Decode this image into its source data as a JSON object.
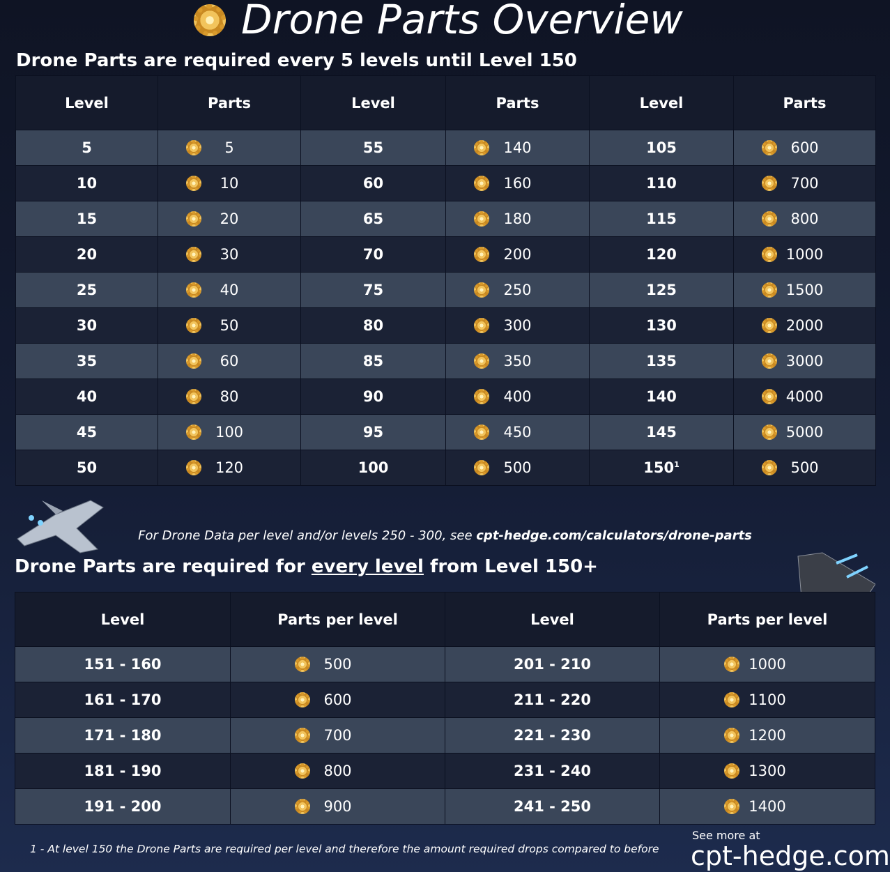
{
  "title": "Drone Parts Overview",
  "section1": {
    "heading": "Drone Parts are required every 5 levels until Level 150"
  },
  "table1": {
    "headers": [
      "Level",
      "Parts",
      "Level",
      "Parts",
      "Level",
      "Parts"
    ],
    "rows": [
      [
        5,
        5,
        55,
        140,
        105,
        600
      ],
      [
        10,
        10,
        60,
        160,
        110,
        700
      ],
      [
        15,
        20,
        65,
        180,
        115,
        800
      ],
      [
        20,
        30,
        70,
        200,
        120,
        1000
      ],
      [
        25,
        40,
        75,
        250,
        125,
        1500
      ],
      [
        30,
        50,
        80,
        300,
        130,
        2000
      ],
      [
        35,
        60,
        85,
        350,
        135,
        3000
      ],
      [
        40,
        80,
        90,
        400,
        140,
        4000
      ],
      [
        45,
        100,
        95,
        450,
        145,
        5000
      ],
      [
        50,
        120,
        100,
        500,
        150,
        500
      ]
    ],
    "footnote_marker": "1"
  },
  "note": {
    "text": "For Drone Data per level and/or levels 250 - 300, see",
    "link": "cpt-hedge.com/calculators/drone-parts"
  },
  "section2": {
    "heading_before": "Drone Parts are required for",
    "heading_underlined": "every level",
    "heading_after": "from Level 150+"
  },
  "table2": {
    "headers": [
      "Level",
      "Parts per level",
      "Level",
      "Parts per level"
    ],
    "rows": [
      [
        "151 - 160",
        500,
        "201 - 210",
        1000
      ],
      [
        "161 - 170",
        600,
        "211 - 220",
        1100
      ],
      [
        "171 - 180",
        700,
        "221 - 230",
        1200
      ],
      [
        "181 - 190",
        800,
        "231 - 240",
        1300
      ],
      [
        "191 - 200",
        900,
        "241 - 250",
        1400
      ]
    ]
  },
  "footnote": "1 - At level 150 the Drone Parts are required per level and therefore the amount required drops compared to before",
  "brand": {
    "prefix": "See more at",
    "site": "cpt-hedge.com"
  }
}
